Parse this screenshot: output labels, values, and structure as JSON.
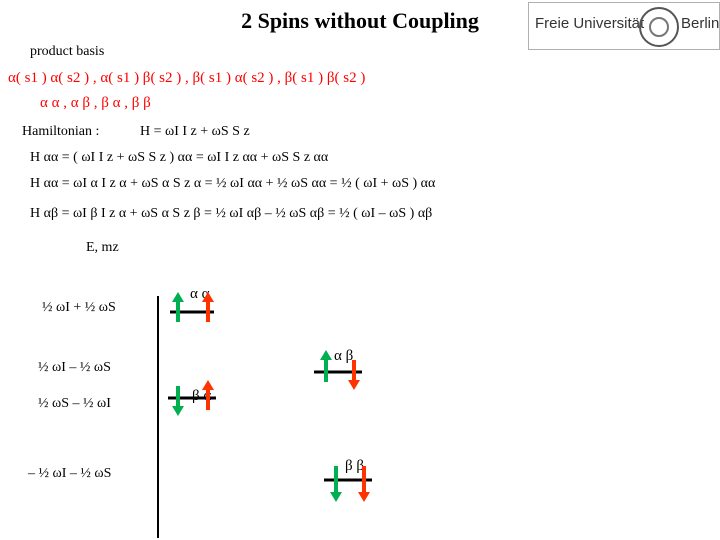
{
  "title": "2 Spins without Coupling",
  "logo": {
    "left": "Freie Universität",
    "right": "Berlin"
  },
  "basis": {
    "label": "product basis",
    "states": "α( s1 )  α( s2 )  , α( s1 )  β( s2 )  , β( s1 )  α( s2 )  , β( s1 )  β( s2 )",
    "short": "α  α  ,    α  β  ,    β  α  ,     β  β"
  },
  "hamiltonian": {
    "label": "Hamiltonian  :",
    "expr": "H  =   ωI  I z  +   ωS  S z"
  },
  "equations": [
    "H  αα =  ( ωI I z +    ωS S z ) αα =  ωI I z αα +   ωS S z αα",
    "H  αα  =  ωI  α I z α +    ωS α S z α =  ½  ωI  αα +    ½  ωS  αα  = ½ ( ωI +  ωS )  αα",
    "H  αβ  =  ωI  β  I z α +    ωS α S z β =   ½  ωI  αβ –  ½ ωS  αβ   = ½ ( ωI – ωS )  αβ"
  ],
  "axis_label": "E, mz",
  "levels": [
    {
      "energy": "½ ωI + ½ ωS",
      "state": "α    α"
    },
    {
      "energy": "½ ωI – ½ ωS",
      "state": "α     β"
    },
    {
      "energy": "½ ωS – ½ ωI",
      "state": "β     α"
    },
    {
      "energy": "– ½ ωI – ½ ωS",
      "state": "β     β"
    }
  ]
}
